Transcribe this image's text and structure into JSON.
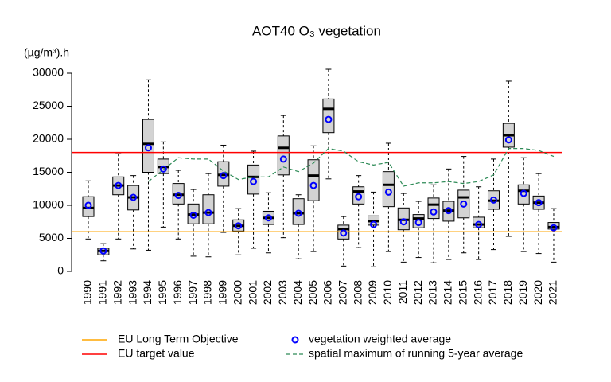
{
  "chart_data": {
    "type": "box",
    "title": "AOT40 O₃ vegetation",
    "y_label": "(µg/m³).h",
    "categories": [
      "1990",
      "1991",
      "1992",
      "1993",
      "1994",
      "1995",
      "1996",
      "1997",
      "1998",
      "1999",
      "2000",
      "2001",
      "2002",
      "2003",
      "2004",
      "2005",
      "2006",
      "2007",
      "2008",
      "2009",
      "2010",
      "2011",
      "2012",
      "2013",
      "2014",
      "2015",
      "2016",
      "2017",
      "2018",
      "2019",
      "2020",
      "2021"
    ],
    "box": {
      "fill": "#d3d3d3",
      "low": [
        4900,
        1600,
        4900,
        3400,
        3200,
        6700,
        4900,
        2300,
        2200,
        5900,
        2500,
        3500,
        2800,
        5100,
        1900,
        3000,
        14000,
        800,
        3600,
        700,
        3000,
        1400,
        2100,
        1300,
        1800,
        2800,
        1800,
        3300,
        5300,
        3000,
        2700,
        1400
      ],
      "q1": [
        8300,
        2500,
        11600,
        9300,
        15000,
        14800,
        10200,
        7200,
        7200,
        12900,
        6100,
        11700,
        7100,
        14600,
        7100,
        10700,
        21000,
        4900,
        10200,
        7000,
        9800,
        6300,
        6600,
        8000,
        7600,
        8100,
        6600,
        9400,
        18800,
        10200,
        9400,
        6400
      ],
      "median": [
        9600,
        3100,
        13000,
        11200,
        19300,
        15800,
        11600,
        8600,
        8900,
        14600,
        6900,
        14300,
        8100,
        18700,
        8800,
        14500,
        24600,
        6400,
        12100,
        7600,
        13100,
        7800,
        8000,
        10100,
        9200,
        11200,
        7100,
        10700,
        20600,
        12200,
        10400,
        6700
      ],
      "q3": [
        11300,
        3500,
        14300,
        13000,
        23000,
        17000,
        13300,
        10200,
        11600,
        16600,
        7800,
        16100,
        9100,
        20500,
        11000,
        16900,
        26100,
        7000,
        12800,
        8400,
        15100,
        9600,
        8600,
        11100,
        10600,
        12300,
        8200,
        12200,
        22400,
        13100,
        11400,
        7400
      ],
      "high": [
        13700,
        4200,
        17800,
        14500,
        29000,
        19600,
        15300,
        12400,
        14800,
        19100,
        9500,
        18200,
        11900,
        23600,
        11600,
        19000,
        30600,
        8300,
        14500,
        12000,
        19400,
        11800,
        10600,
        13100,
        15500,
        17400,
        12800,
        17000,
        28800,
        17200,
        14800,
        9500
      ]
    },
    "points": {
      "name": "vegetation weighted average",
      "color": "#0000ff",
      "values": [
        10000,
        3100,
        13000,
        11200,
        18700,
        15500,
        11500,
        8500,
        8900,
        14500,
        6900,
        13600,
        8100,
        17000,
        8800,
        13000,
        23000,
        5800,
        11300,
        7100,
        12000,
        7500,
        7400,
        9000,
        9200,
        10200,
        7100,
        10800,
        19900,
        11800,
        10400,
        6600
      ]
    },
    "line": {
      "name": "spatial maximum of running 5-year average",
      "color": "#2e8b57",
      "values": [
        null,
        null,
        null,
        null,
        13600,
        15400,
        17200,
        17000,
        17000,
        15200,
        13900,
        14300,
        14300,
        15800,
        15100,
        16400,
        18600,
        18200,
        16600,
        16100,
        16500,
        12900,
        13400,
        13400,
        13600,
        13300,
        13600,
        14600,
        18600,
        18600,
        18300,
        17400
      ]
    },
    "hlines": [
      {
        "name": "EU Long Term Objective",
        "value": 6000,
        "color": "#ffa500"
      },
      {
        "name": "EU target value",
        "value": 18000,
        "color": "#ff0000"
      }
    ],
    "ylim": [
      0,
      30000
    ],
    "yticks": [
      0,
      5000,
      10000,
      15000,
      20000,
      25000,
      30000
    ]
  }
}
